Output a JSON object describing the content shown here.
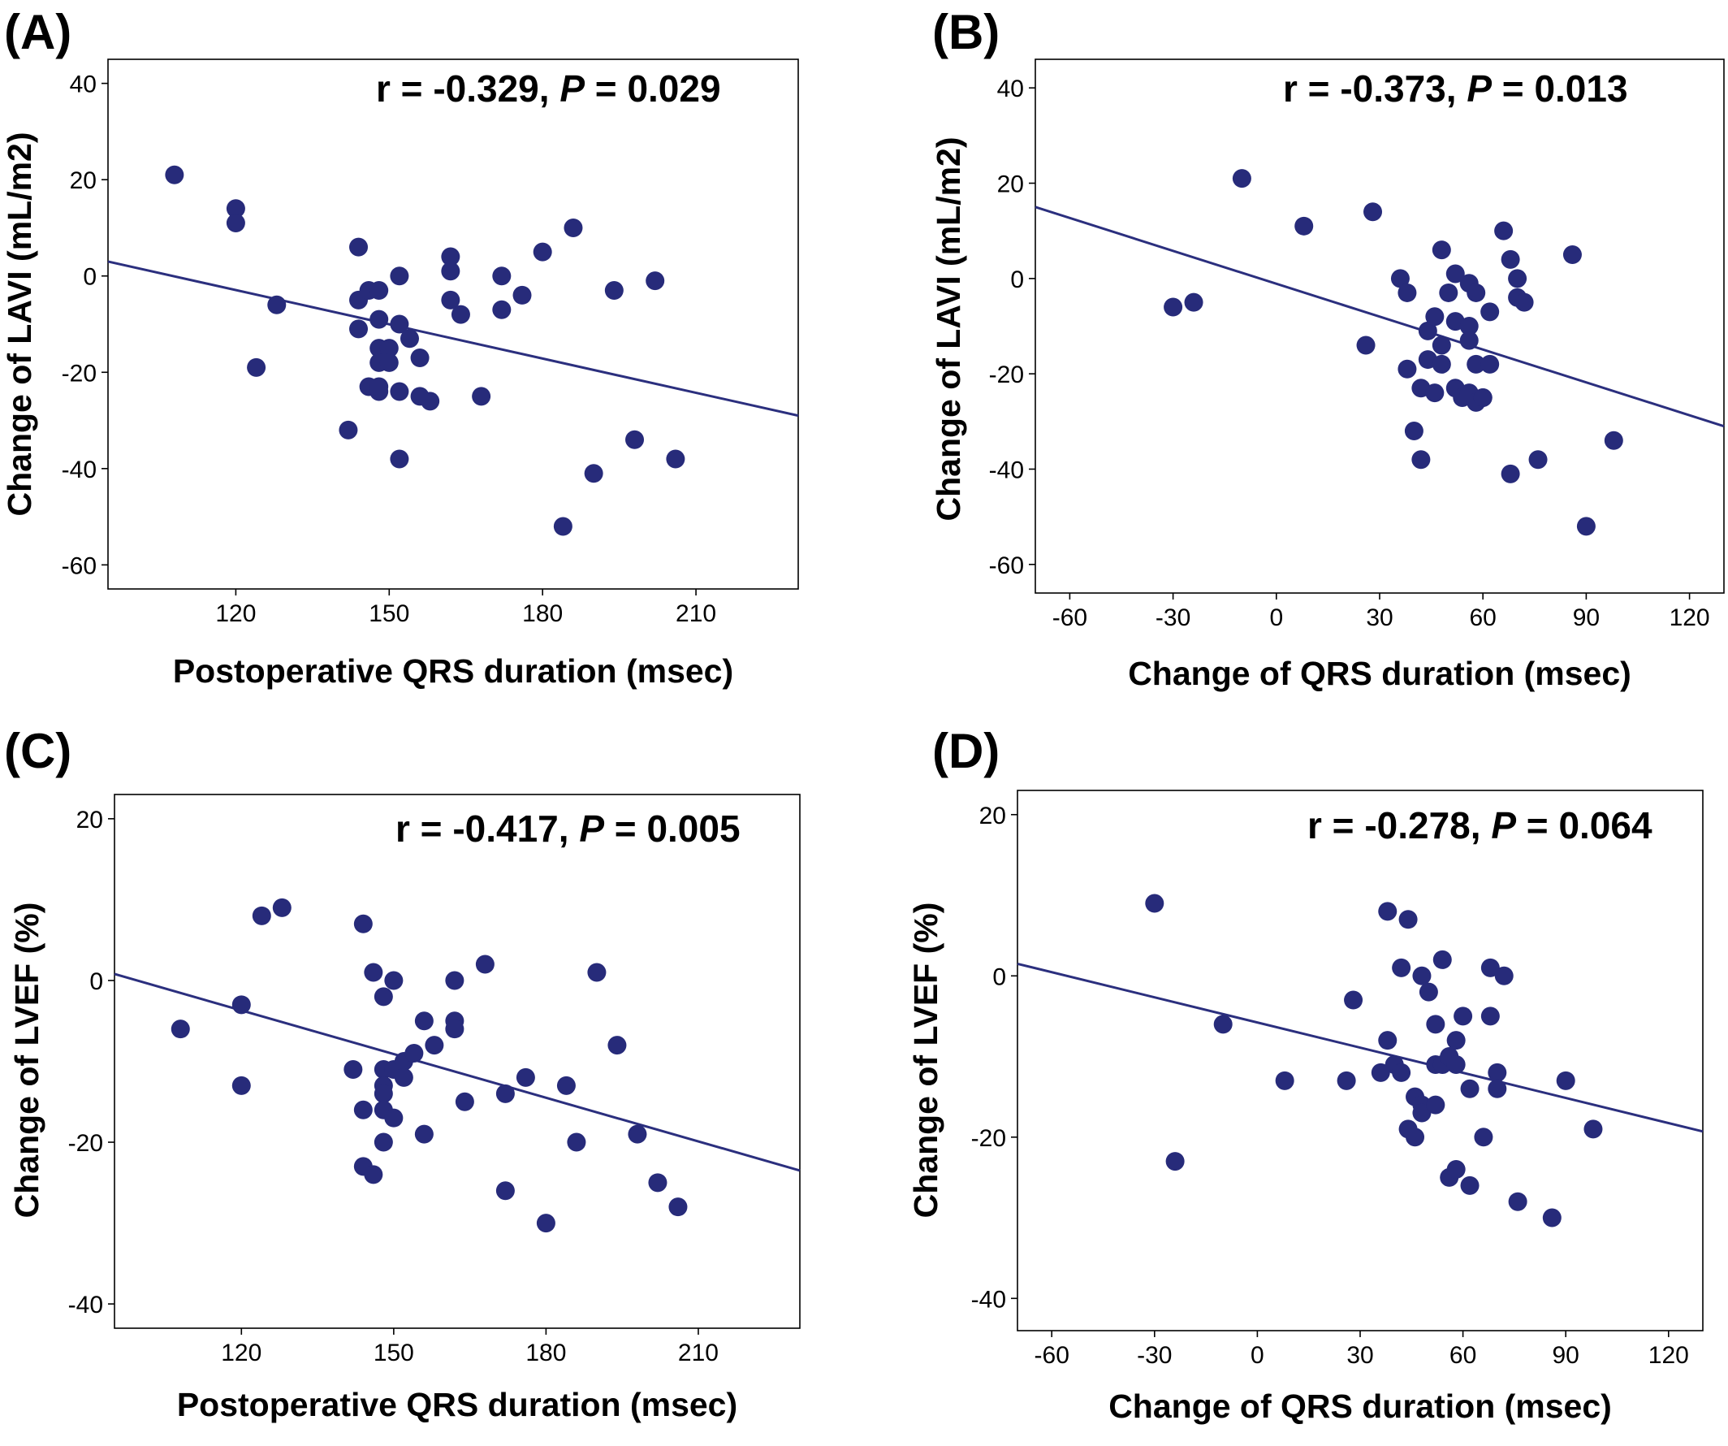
{
  "colors": {
    "point": "#272b7a",
    "line": "#2b2f7e",
    "axis": "#000000"
  },
  "chart_data": [
    {
      "type": "scatter",
      "panel_label": "(A)",
      "stat_r": "r = -0.329, ",
      "stat_p_letter": "P",
      "stat_p_rest": " = 0.029",
      "xlabel": "Postoperative QRS duration (msec)",
      "ylabel": "Change of LAVI (mL/m2)",
      "xlim": [
        95,
        230
      ],
      "ylim": [
        -65,
        45
      ],
      "xticks": [
        120,
        150,
        180,
        210
      ],
      "yticks": [
        40,
        20,
        0,
        -20,
        -40,
        -60
      ],
      "xtick_labels": [
        "120",
        "150",
        "180",
        "210"
      ],
      "ytick_labels": [
        "40",
        "20",
        "0",
        "-20",
        "-40",
        "-60"
      ],
      "fit_line": [
        [
          95,
          3
        ],
        [
          230,
          -29
        ]
      ],
      "points": [
        [
          108,
          21
        ],
        [
          120,
          14
        ],
        [
          120,
          11
        ],
        [
          128,
          -6
        ],
        [
          124,
          -19
        ],
        [
          144,
          6
        ],
        [
          144,
          -5
        ],
        [
          144,
          -11
        ],
        [
          146,
          -3
        ],
        [
          148,
          -3
        ],
        [
          148,
          -9
        ],
        [
          148,
          -15
        ],
        [
          150,
          -15
        ],
        [
          148,
          -18
        ],
        [
          150,
          -18
        ],
        [
          146,
          -23
        ],
        [
          148,
          -24
        ],
        [
          148,
          -23
        ],
        [
          152,
          0
        ],
        [
          152,
          -10
        ],
        [
          154,
          -13
        ],
        [
          152,
          -24
        ],
        [
          156,
          -17
        ],
        [
          156,
          -25
        ],
        [
          158,
          -26
        ],
        [
          152,
          -38
        ],
        [
          142,
          -32
        ],
        [
          162,
          4
        ],
        [
          162,
          1
        ],
        [
          162,
          -5
        ],
        [
          164,
          -8
        ],
        [
          168,
          -25
        ],
        [
          172,
          0
        ],
        [
          172,
          -7
        ],
        [
          176,
          -4
        ],
        [
          180,
          5
        ],
        [
          186,
          10
        ],
        [
          184,
          -52
        ],
        [
          190,
          -41
        ],
        [
          194,
          -3
        ],
        [
          198,
          -34
        ],
        [
          202,
          -1
        ],
        [
          206,
          -38
        ]
      ]
    },
    {
      "type": "scatter",
      "panel_label": "(B)",
      "stat_r": "r = -0.373, ",
      "stat_p_letter": "P",
      "stat_p_rest": " = 0.013",
      "xlabel": "Change of QRS duration (msec)",
      "ylabel": "Change of LAVI (mL/m2)",
      "xlim": [
        -70,
        130
      ],
      "ylim": [
        -66,
        46
      ],
      "xticks": [
        -60,
        -30,
        0,
        30,
        60,
        90,
        120
      ],
      "yticks": [
        40,
        20,
        0,
        -20,
        -40,
        -60
      ],
      "xtick_labels": [
        "-60",
        "-30",
        "0",
        "30",
        "60",
        "90",
        "120"
      ],
      "ytick_labels": [
        "40",
        "20",
        "0",
        "-20",
        "-40",
        "-60"
      ],
      "fit_line": [
        [
          -70,
          15
        ],
        [
          130,
          -31
        ]
      ],
      "points": [
        [
          -30,
          -6
        ],
        [
          -24,
          -5
        ],
        [
          -10,
          21
        ],
        [
          8,
          11
        ],
        [
          26,
          -14
        ],
        [
          28,
          14
        ],
        [
          36,
          0
        ],
        [
          38,
          -3
        ],
        [
          38,
          -19
        ],
        [
          40,
          -32
        ],
        [
          42,
          -38
        ],
        [
          42,
          -23
        ],
        [
          44,
          -11
        ],
        [
          44,
          -17
        ],
        [
          46,
          -8
        ],
        [
          46,
          -24
        ],
        [
          48,
          -14
        ],
        [
          48,
          -18
        ],
        [
          48,
          6
        ],
        [
          50,
          -3
        ],
        [
          52,
          1
        ],
        [
          52,
          -9
        ],
        [
          52,
          -23
        ],
        [
          54,
          -25
        ],
        [
          56,
          -10
        ],
        [
          56,
          -13
        ],
        [
          56,
          -1
        ],
        [
          56,
          -24
        ],
        [
          58,
          -3
        ],
        [
          58,
          -18
        ],
        [
          58,
          -26
        ],
        [
          60,
          -25
        ],
        [
          60,
          -25
        ],
        [
          62,
          -7
        ],
        [
          62,
          -18
        ],
        [
          66,
          10
        ],
        [
          68,
          4
        ],
        [
          68,
          -41
        ],
        [
          70,
          0
        ],
        [
          70,
          -4
        ],
        [
          72,
          -5
        ],
        [
          76,
          -38
        ],
        [
          86,
          5
        ],
        [
          90,
          -52
        ],
        [
          98,
          -34
        ]
      ]
    },
    {
      "type": "scatter",
      "panel_label": "(C)",
      "stat_r": "r = -0.417, ",
      "stat_p_letter": "P",
      "stat_p_rest": " = 0.005",
      "xlabel": "Postoperative QRS duration (msec)",
      "ylabel": "Change of LVEF (%)",
      "xlim": [
        95,
        230
      ],
      "ylim": [
        -43,
        23
      ],
      "xticks": [
        120,
        150,
        180,
        210
      ],
      "yticks": [
        20,
        0,
        -20,
        -40
      ],
      "xtick_labels": [
        "120",
        "150",
        "180",
        "210"
      ],
      "ytick_labels": [
        "20",
        "0",
        "-20",
        "-40"
      ],
      "fit_line": [
        [
          95,
          0.8
        ],
        [
          230,
          -23.5
        ]
      ],
      "points": [
        [
          108,
          -6
        ],
        [
          120,
          -3
        ],
        [
          120,
          -13
        ],
        [
          124,
          8
        ],
        [
          128,
          9
        ],
        [
          144,
          7
        ],
        [
          146,
          1
        ],
        [
          148,
          -2
        ],
        [
          150,
          0
        ],
        [
          142,
          -11
        ],
        [
          148,
          -11
        ],
        [
          148,
          -13
        ],
        [
          148,
          -14
        ],
        [
          144,
          -16
        ],
        [
          148,
          -16
        ],
        [
          150,
          -17
        ],
        [
          148,
          -20
        ],
        [
          144,
          -23
        ],
        [
          146,
          -24
        ],
        [
          150,
          -11
        ],
        [
          152,
          -10
        ],
        [
          152,
          -12
        ],
        [
          154,
          -9
        ],
        [
          156,
          -5
        ],
        [
          156,
          -19
        ],
        [
          158,
          -8
        ],
        [
          162,
          0
        ],
        [
          162,
          -5
        ],
        [
          162,
          -6
        ],
        [
          164,
          -15
        ],
        [
          168,
          2
        ],
        [
          172,
          -14
        ],
        [
          172,
          -26
        ],
        [
          176,
          -12
        ],
        [
          180,
          -30
        ],
        [
          184,
          -13
        ],
        [
          186,
          -20
        ],
        [
          190,
          1
        ],
        [
          194,
          -8
        ],
        [
          198,
          -19
        ],
        [
          202,
          -25
        ],
        [
          206,
          -28
        ]
      ]
    },
    {
      "type": "scatter",
      "panel_label": "(D)",
      "stat_r": "r = -0.278, ",
      "stat_p_letter": "P",
      "stat_p_rest": " = 0.064",
      "xlabel": "Change of QRS duration (msec)",
      "ylabel": "Change of LVEF (%)",
      "xlim": [
        -70,
        130
      ],
      "ylim": [
        -44,
        23
      ],
      "xticks": [
        -60,
        -30,
        0,
        30,
        60,
        90,
        120
      ],
      "yticks": [
        20,
        0,
        -20,
        -40
      ],
      "xtick_labels": [
        "-60",
        "-30",
        "0",
        "30",
        "60",
        "90",
        "120"
      ],
      "ytick_labels": [
        "20",
        "0",
        "-20",
        "-40"
      ],
      "fit_line": [
        [
          -70,
          1.5
        ],
        [
          130,
          -19.3
        ]
      ],
      "points": [
        [
          -30,
          9
        ],
        [
          -24,
          -23
        ],
        [
          -10,
          -6
        ],
        [
          8,
          -13
        ],
        [
          26,
          -13
        ],
        [
          28,
          -3
        ],
        [
          36,
          -12
        ],
        [
          38,
          8
        ],
        [
          38,
          -8
        ],
        [
          40,
          -11
        ],
        [
          42,
          -12
        ],
        [
          42,
          1
        ],
        [
          44,
          7
        ],
        [
          44,
          -19
        ],
        [
          46,
          -15
        ],
        [
          46,
          -20
        ],
        [
          48,
          0
        ],
        [
          48,
          -16
        ],
        [
          48,
          -17
        ],
        [
          50,
          -2
        ],
        [
          52,
          -6
        ],
        [
          52,
          -16
        ],
        [
          52,
          -11
        ],
        [
          54,
          2
        ],
        [
          54,
          -11
        ],
        [
          56,
          -10
        ],
        [
          56,
          -25
        ],
        [
          58,
          -8
        ],
        [
          58,
          -11
        ],
        [
          58,
          -24
        ],
        [
          60,
          -5
        ],
        [
          62,
          -14
        ],
        [
          62,
          -26
        ],
        [
          66,
          -20
        ],
        [
          68,
          1
        ],
        [
          68,
          -5
        ],
        [
          70,
          -12
        ],
        [
          70,
          -14
        ],
        [
          72,
          0
        ],
        [
          76,
          -28
        ],
        [
          86,
          -30
        ],
        [
          90,
          -13
        ],
        [
          98,
          -19
        ]
      ]
    }
  ]
}
